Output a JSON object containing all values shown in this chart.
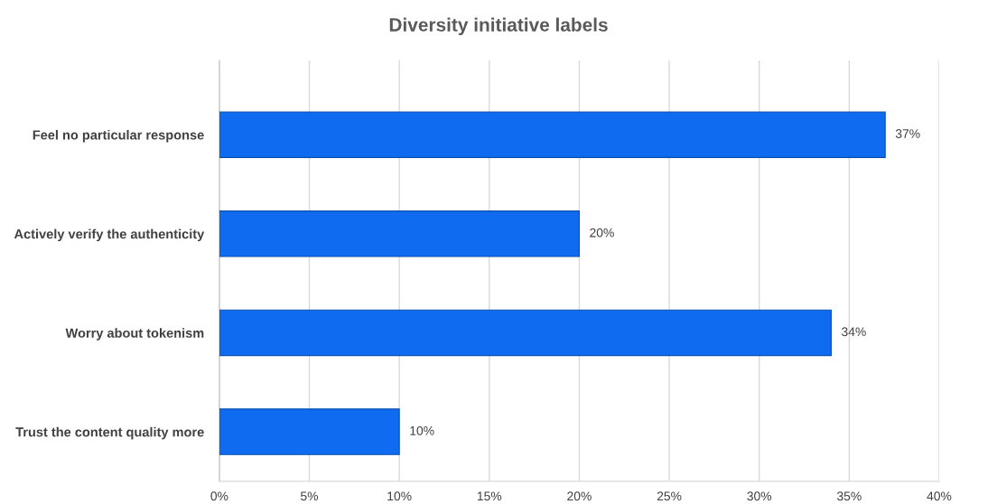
{
  "chart_data": {
    "type": "bar",
    "orientation": "horizontal",
    "title": "Diversity initiative labels",
    "categories": [
      "Feel no particular response",
      "Actively verify the authenticity",
      "Worry about tokenism",
      "Trust the content quality more"
    ],
    "values": [
      37,
      20,
      34,
      10
    ],
    "value_labels": [
      "37%",
      "20%",
      "34%",
      "10%"
    ],
    "color": "#0f6cf0",
    "xlim": [
      0,
      40
    ],
    "xticks": [
      {
        "value": 0,
        "label": "0%"
      },
      {
        "value": 5,
        "label": "5%"
      },
      {
        "value": 10,
        "label": "10%"
      },
      {
        "value": 15,
        "label": "15%"
      },
      {
        "value": 20,
        "label": "20%"
      },
      {
        "value": 25,
        "label": "25%"
      },
      {
        "value": 30,
        "label": "30%"
      },
      {
        "value": 35,
        "label": "35%"
      },
      {
        "value": 40,
        "label": "40%"
      }
    ],
    "grid": "x",
    "legend": false
  }
}
